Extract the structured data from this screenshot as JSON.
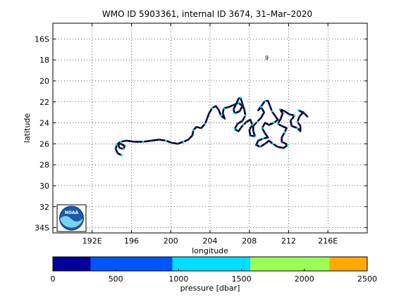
{
  "title": "WMO ID 5903361, internal ID 3674, 31–Mar–2020",
  "map": {
    "xlabel": "longitude",
    "ylabel": "latitude",
    "x_range": [
      188,
      220
    ],
    "y_range": [
      14.5,
      34.5
    ],
    "x_ticks": [
      {
        "v": 192,
        "label": "192E"
      },
      {
        "v": 196,
        "label": "196"
      },
      {
        "v": 200,
        "label": "200"
      },
      {
        "v": 204,
        "label": "204"
      },
      {
        "v": 208,
        "label": "208"
      },
      {
        "v": 212,
        "label": "212"
      },
      {
        "v": 216,
        "label": "216E"
      }
    ],
    "y_ticks": [
      {
        "v": 16,
        "label": "16S"
      },
      {
        "v": 18,
        "label": "18"
      },
      {
        "v": 20,
        "label": "20"
      },
      {
        "v": 22,
        "label": "22"
      },
      {
        "v": 24,
        "label": "24"
      },
      {
        "v": 26,
        "label": "26"
      },
      {
        "v": 28,
        "label": "28"
      },
      {
        "v": 30,
        "label": "30"
      },
      {
        "v": 32,
        "label": "32"
      },
      {
        "v": 34,
        "label": "34S"
      }
    ],
    "grid": true,
    "track_color": "#000033",
    "point_color": "#00e5ff",
    "annotation": {
      "lon": 209.6,
      "lat": 17.8,
      "text": "9"
    },
    "logo_text": "NOAA",
    "track": [
      [
        195.0,
        27.1
      ],
      [
        194.6,
        26.9
      ],
      [
        194.4,
        26.5
      ],
      [
        194.5,
        26.1
      ],
      [
        194.9,
        26.0
      ],
      [
        195.3,
        26.2
      ],
      [
        195.2,
        26.5
      ],
      [
        194.8,
        26.4
      ],
      [
        194.6,
        26.0
      ],
      [
        194.9,
        25.8
      ],
      [
        195.5,
        25.7
      ],
      [
        196.3,
        25.8
      ],
      [
        197.2,
        25.8
      ],
      [
        198.0,
        25.7
      ],
      [
        198.8,
        25.6
      ],
      [
        199.5,
        25.7
      ],
      [
        200.1,
        25.9
      ],
      [
        200.7,
        26.0
      ],
      [
        201.3,
        25.8
      ],
      [
        201.8,
        25.6
      ],
      [
        202.2,
        25.2
      ],
      [
        202.3,
        24.7
      ],
      [
        202.6,
        24.4
      ],
      [
        203.1,
        24.5
      ],
      [
        203.5,
        24.1
      ],
      [
        203.7,
        23.6
      ],
      [
        203.9,
        23.1
      ],
      [
        204.2,
        22.6
      ],
      [
        204.6,
        22.4
      ],
      [
        204.9,
        22.8
      ],
      [
        205.1,
        23.3
      ],
      [
        205.5,
        23.6
      ],
      [
        205.3,
        23.1
      ],
      [
        205.4,
        22.6
      ],
      [
        205.9,
        22.5
      ],
      [
        206.4,
        22.3
      ],
      [
        206.9,
        22.1
      ],
      [
        207.3,
        22.4
      ],
      [
        207.0,
        22.9
      ],
      [
        206.5,
        23.1
      ],
      [
        206.4,
        22.7
      ],
      [
        206.9,
        21.7
      ],
      [
        207.1,
        21.6
      ],
      [
        207.3,
        22.2
      ],
      [
        207.5,
        22.8
      ],
      [
        207.6,
        23.3
      ],
      [
        207.3,
        23.8
      ],
      [
        206.8,
        24.1
      ],
      [
        206.5,
        24.6
      ],
      [
        206.9,
        24.8
      ],
      [
        207.2,
        24.4
      ],
      [
        207.4,
        24.2
      ],
      [
        207.7,
        23.9
      ],
      [
        208.1,
        23.7
      ],
      [
        208.3,
        24.2
      ],
      [
        208.0,
        24.7
      ],
      [
        208.1,
        25.2
      ],
      [
        208.6,
        25.3
      ],
      [
        208.4,
        24.8
      ],
      [
        208.4,
        24.3
      ],
      [
        208.8,
        23.9
      ],
      [
        209.2,
        23.5
      ],
      [
        209.5,
        23.0
      ],
      [
        209.2,
        22.5
      ],
      [
        208.9,
        22.8
      ],
      [
        209.3,
        22.3
      ],
      [
        209.6,
        21.9
      ],
      [
        209.9,
        21.9
      ],
      [
        210.1,
        22.4
      ],
      [
        210.3,
        22.9
      ],
      [
        210.6,
        23.3
      ],
      [
        210.9,
        23.7
      ],
      [
        210.5,
        24.0
      ],
      [
        210.0,
        24.2
      ],
      [
        209.6,
        24.0
      ],
      [
        209.3,
        24.5
      ],
      [
        209.6,
        25.0
      ],
      [
        209.9,
        25.4
      ],
      [
        209.4,
        25.5
      ],
      [
        208.9,
        25.7
      ],
      [
        208.7,
        26.1
      ],
      [
        209.1,
        26.3
      ],
      [
        209.6,
        26.0
      ],
      [
        210.0,
        25.7
      ],
      [
        210.4,
        26.0
      ],
      [
        210.9,
        26.3
      ],
      [
        211.5,
        26.4
      ],
      [
        211.9,
        26.1
      ],
      [
        211.3,
        25.8
      ],
      [
        211.3,
        25.4
      ],
      [
        211.6,
        24.9
      ],
      [
        211.8,
        24.5
      ],
      [
        211.3,
        24.3
      ],
      [
        210.9,
        24.1
      ],
      [
        211.2,
        23.6
      ],
      [
        211.4,
        23.1
      ],
      [
        211.1,
        22.7
      ],
      [
        211.6,
        22.9
      ],
      [
        212.1,
        23.2
      ],
      [
        212.6,
        23.3
      ],
      [
        212.2,
        23.8
      ],
      [
        212.3,
        24.3
      ],
      [
        212.9,
        24.5
      ],
      [
        213.2,
        24.8
      ],
      [
        213.2,
        24.3
      ],
      [
        212.9,
        23.9
      ],
      [
        213.1,
        23.4
      ],
      [
        213.5,
        23.0
      ],
      [
        213.0,
        22.8
      ],
      [
        213.6,
        23.1
      ],
      [
        213.9,
        23.4
      ]
    ]
  },
  "colorbar": {
    "label": "pressure [dbar]",
    "segments": [
      {
        "from": 0,
        "to": 300,
        "color": "#000099"
      },
      {
        "from": 300,
        "to": 950,
        "color": "#0055ff"
      },
      {
        "from": 950,
        "to": 1570,
        "color": "#00ddff"
      },
      {
        "from": 1570,
        "to": 2200,
        "color": "#99ff55"
      },
      {
        "from": 2200,
        "to": 2500,
        "color": "#ffaa00"
      }
    ],
    "ticks": [
      {
        "v": 0,
        "label": "0"
      },
      {
        "v": 500,
        "label": "500"
      },
      {
        "v": 1000,
        "label": "1000"
      },
      {
        "v": 1500,
        "label": "1500"
      },
      {
        "v": 2000,
        "label": "2000"
      },
      {
        "v": 2500,
        "label": "2500"
      }
    ],
    "range": [
      0,
      2500
    ]
  }
}
